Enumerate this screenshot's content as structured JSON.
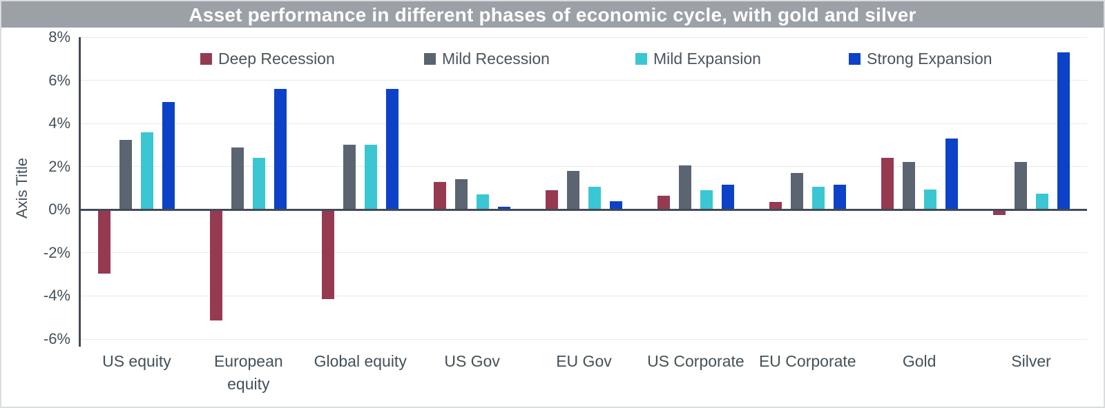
{
  "chart_data": {
    "type": "bar",
    "title": "Asset performance in different phases of economic cycle, with gold and silver",
    "xlabel": "",
    "ylabel": "Axis Title",
    "ylim": [
      -6,
      8
    ],
    "ytick_step": 2,
    "ytick_labels": [
      "8%",
      "6%",
      "4%",
      "2%",
      "0%",
      "-2%",
      "-4%",
      "-6%"
    ],
    "grid": true,
    "legend_position": "top-inside",
    "categories": [
      "US equity",
      "European equity",
      "Global equity",
      "US Gov",
      "EU Gov",
      "US Corporate",
      "EU Corporate",
      "Gold",
      "Silver"
    ],
    "series": [
      {
        "name": "Deep Recession",
        "color": "#963A52",
        "values": [
          -2.9,
          -5.1,
          -4.1,
          1.3,
          0.9,
          0.65,
          0.35,
          2.4,
          -0.2
        ]
      },
      {
        "name": "Mild Recession",
        "color": "#5A6571",
        "values": [
          3.25,
          2.9,
          3.0,
          1.4,
          1.8,
          2.05,
          1.7,
          2.2,
          2.2
        ]
      },
      {
        "name": "Mild Expansion",
        "color": "#3BC6D3",
        "values": [
          3.6,
          2.4,
          3.0,
          0.7,
          1.05,
          0.9,
          1.05,
          0.95,
          0.75
        ]
      },
      {
        "name": "Strong Expansion",
        "color": "#0C42C8",
        "values": [
          5.0,
          5.6,
          5.6,
          0.15,
          0.4,
          1.15,
          1.15,
          3.3,
          7.3
        ]
      }
    ]
  },
  "colors": {
    "title_band": "#9BA1A6",
    "title_text": "#FFFFFF",
    "axis_line": "#414B55",
    "gridline": "#E8EAEC",
    "label_text": "#44505A",
    "background": "#FFFFFF",
    "frame_border": "#DADCDE"
  }
}
